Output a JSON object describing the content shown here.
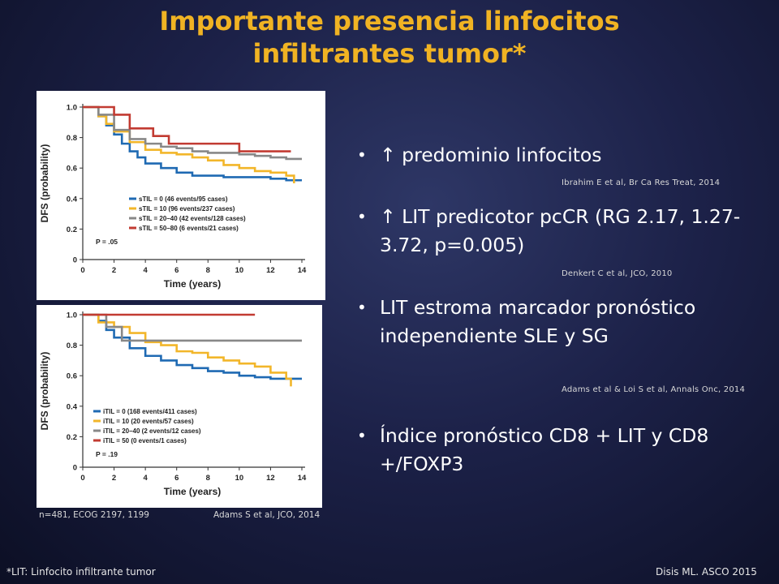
{
  "slide": {
    "title_line1": "Importante presencia linfocitos",
    "title_line2": "infiltrantes tumor*",
    "title_color": "#f0b323"
  },
  "bullets": [
    {
      "text": "↑ predominio linfocitos",
      "ref": "Ibrahim E et al, Br Ca Res Treat, 2014"
    },
    {
      "text": "↑ LIT predicotor pcCR (RG 2.17, 1.27-3.72, p=0.005)",
      "ref": "Denkert C et al, JCO, 2010"
    },
    {
      "text": "LIT estroma marcador pronóstico  independiente SLE y SG",
      "ref": "Adams et al & Loi S et al, Annals Onc, 2014"
    },
    {
      "text": "Índice pronóstico CD8 + LIT  y CD8 +/FOXP3",
      "ref": ""
    }
  ],
  "bullet_marker": "•",
  "chart_captions": {
    "left": "n=481, ECOG 2197, 1199",
    "right": "Adams S et al, JCO, 2014"
  },
  "footer": {
    "left": "*LIT: Linfocito infiltrante tumor",
    "right": "Disis ML. ASCO 2015"
  },
  "chart_data": [
    {
      "type": "line",
      "xlabel": "Time (years)",
      "ylabel": "DFS (probability)",
      "xlim": [
        0,
        14
      ],
      "ylim": [
        0,
        1.0
      ],
      "xticks": [
        "0",
        "2",
        "4",
        "6",
        "8",
        "10",
        "12",
        "14"
      ],
      "yticks": [
        "0",
        "0.2",
        "0.4",
        "0.6",
        "0.8",
        "1.0"
      ],
      "annotation": "P = .05",
      "legend_position": "bottom-right",
      "series": [
        {
          "name": "sTIL = 0 (46 events/95 cases)",
          "color": "#1f6ab3",
          "x": [
            0,
            1,
            1.5,
            2,
            2.5,
            3,
            3.5,
            4,
            5,
            6,
            7,
            8,
            9,
            10,
            11,
            12,
            13,
            14
          ],
          "y": [
            1.0,
            0.94,
            0.88,
            0.82,
            0.76,
            0.71,
            0.67,
            0.63,
            0.6,
            0.57,
            0.55,
            0.55,
            0.54,
            0.54,
            0.54,
            0.53,
            0.52,
            0.52
          ]
        },
        {
          "name": "sTIL = 10 (96 events/237 cases)",
          "color": "#f2b62a",
          "x": [
            0,
            1,
            1.5,
            2,
            3,
            4,
            5,
            6,
            7,
            8,
            9,
            10,
            11,
            12,
            13,
            13.5
          ],
          "y": [
            1.0,
            0.94,
            0.89,
            0.84,
            0.77,
            0.72,
            0.7,
            0.69,
            0.67,
            0.65,
            0.62,
            0.6,
            0.58,
            0.57,
            0.55,
            0.5
          ]
        },
        {
          "name": "sTIL = 20–40 (42 events/128 cases)",
          "color": "#888888",
          "x": [
            0,
            1,
            2,
            3,
            4,
            5,
            6,
            7,
            8,
            9,
            10,
            11,
            12,
            13,
            14
          ],
          "y": [
            1.0,
            0.95,
            0.85,
            0.79,
            0.76,
            0.74,
            0.73,
            0.71,
            0.7,
            0.7,
            0.69,
            0.68,
            0.67,
            0.66,
            0.66
          ]
        },
        {
          "name": "sTIL = 50–80 (6 events/21 cases)",
          "color": "#c23b32",
          "x": [
            0,
            2,
            3,
            4.5,
            5.5,
            8,
            10,
            13.3
          ],
          "y": [
            1.0,
            0.95,
            0.86,
            0.81,
            0.76,
            0.76,
            0.71,
            0.71
          ]
        }
      ]
    },
    {
      "type": "line",
      "xlabel": "Time (years)",
      "ylabel": "DFS (probability)",
      "xlim": [
        0,
        14
      ],
      "ylim": [
        0,
        1.0
      ],
      "xticks": [
        "0",
        "2",
        "4",
        "6",
        "8",
        "10",
        "12",
        "14"
      ],
      "yticks": [
        "0",
        "0.2",
        "0.4",
        "0.6",
        "0.8",
        "1.0"
      ],
      "annotation": "P = .19",
      "legend_position": "bottom-right",
      "series": [
        {
          "name": "iTIL = 0 (168 events/411 cases)",
          "color": "#1f6ab3",
          "x": [
            0,
            1,
            1.5,
            2,
            3,
            4,
            5,
            6,
            7,
            8,
            9,
            10,
            11,
            12,
            13,
            14
          ],
          "y": [
            1.0,
            0.96,
            0.9,
            0.85,
            0.78,
            0.73,
            0.7,
            0.67,
            0.65,
            0.63,
            0.62,
            0.6,
            0.59,
            0.58,
            0.58,
            0.58
          ]
        },
        {
          "name": "iTIL = 10 (20 events/57 cases)",
          "color": "#f2b62a",
          "x": [
            0,
            1,
            2,
            3,
            4,
            5,
            6,
            7,
            8,
            9,
            10,
            11,
            12,
            13,
            13.3
          ],
          "y": [
            1.0,
            0.95,
            0.92,
            0.88,
            0.82,
            0.8,
            0.76,
            0.75,
            0.72,
            0.7,
            0.68,
            0.66,
            0.62,
            0.58,
            0.53
          ]
        },
        {
          "name": "iTIL = 20–40 (2 events/12 cases)",
          "color": "#888888",
          "x": [
            0,
            1.5,
            2.5,
            14
          ],
          "y": [
            1.0,
            0.92,
            0.83,
            0.83
          ]
        },
        {
          "name": "iTIL = 50 (0 events/1 cases)",
          "color": "#c23b32",
          "x": [
            0,
            11
          ],
          "y": [
            1.0,
            1.0
          ]
        }
      ]
    }
  ]
}
